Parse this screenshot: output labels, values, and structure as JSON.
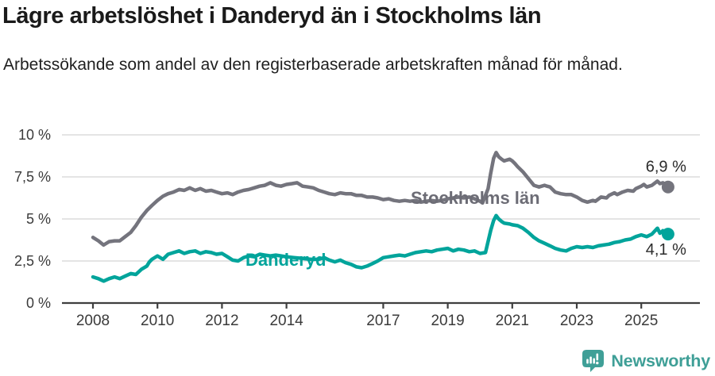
{
  "chart_data": {
    "type": "line",
    "title": "Lägre arbetslöshet i Danderyd än i Stockholms län",
    "subtitle": "Arbetssökande som andel av den registerbaserade arbetskraften månad för månad.",
    "grid": "horizontal",
    "legend_position": "inline-labels",
    "x_axis": {
      "unit": "year",
      "range": [
        2007.0,
        2026.8
      ],
      "ticks": [
        2008,
        2010,
        2012,
        2014,
        2017,
        2019,
        2021,
        2023,
        2025
      ]
    },
    "y_axis": {
      "unit": "%",
      "range": [
        0,
        10
      ],
      "ticks": [
        {
          "value": 0,
          "label": "0 %"
        },
        {
          "value": 2.5,
          "label": "2,5 %"
        },
        {
          "value": 5,
          "label": "5 %"
        },
        {
          "value": 7.5,
          "label": "7,5 %"
        },
        {
          "value": 10,
          "label": "10 %"
        }
      ]
    },
    "colors": {
      "grid": "#dcdcdc",
      "axis": "#3f3f3f",
      "tick_text": "#3a3a3a",
      "value_label_text": "#2b2b2b"
    },
    "series": [
      {
        "name": "Stockholms län",
        "color": "#74747d",
        "label_color": "#6c6c75",
        "end_value_label": "6,9 %",
        "points": [
          [
            2008.0,
            3.9
          ],
          [
            2008.17,
            3.7
          ],
          [
            2008.33,
            3.45
          ],
          [
            2008.5,
            3.65
          ],
          [
            2008.67,
            3.7
          ],
          [
            2008.83,
            3.7
          ],
          [
            2009.0,
            3.95
          ],
          [
            2009.17,
            4.2
          ],
          [
            2009.33,
            4.6
          ],
          [
            2009.5,
            5.1
          ],
          [
            2009.67,
            5.5
          ],
          [
            2009.83,
            5.8
          ],
          [
            2010.0,
            6.1
          ],
          [
            2010.17,
            6.35
          ],
          [
            2010.33,
            6.5
          ],
          [
            2010.5,
            6.6
          ],
          [
            2010.67,
            6.75
          ],
          [
            2010.83,
            6.7
          ],
          [
            2011.0,
            6.85
          ],
          [
            2011.17,
            6.7
          ],
          [
            2011.33,
            6.8
          ],
          [
            2011.5,
            6.65
          ],
          [
            2011.67,
            6.7
          ],
          [
            2011.83,
            6.6
          ],
          [
            2012.0,
            6.5
          ],
          [
            2012.17,
            6.55
          ],
          [
            2012.33,
            6.45
          ],
          [
            2012.5,
            6.6
          ],
          [
            2012.67,
            6.7
          ],
          [
            2012.83,
            6.75
          ],
          [
            2013.0,
            6.85
          ],
          [
            2013.17,
            6.95
          ],
          [
            2013.33,
            7.0
          ],
          [
            2013.5,
            7.15
          ],
          [
            2013.67,
            7.0
          ],
          [
            2013.83,
            6.95
          ],
          [
            2014.0,
            7.05
          ],
          [
            2014.17,
            7.1
          ],
          [
            2014.33,
            7.15
          ],
          [
            2014.5,
            6.95
          ],
          [
            2014.67,
            6.9
          ],
          [
            2014.83,
            6.85
          ],
          [
            2015.0,
            6.7
          ],
          [
            2015.17,
            6.6
          ],
          [
            2015.33,
            6.5
          ],
          [
            2015.5,
            6.45
          ],
          [
            2015.67,
            6.55
          ],
          [
            2015.83,
            6.5
          ],
          [
            2016.0,
            6.5
          ],
          [
            2016.17,
            6.4
          ],
          [
            2016.33,
            6.4
          ],
          [
            2016.5,
            6.3
          ],
          [
            2016.67,
            6.3
          ],
          [
            2016.83,
            6.25
          ],
          [
            2017.0,
            6.15
          ],
          [
            2017.17,
            6.2
          ],
          [
            2017.33,
            6.1
          ],
          [
            2017.5,
            6.05
          ],
          [
            2017.67,
            6.1
          ],
          [
            2017.83,
            6.05
          ],
          [
            2018.0,
            6.1
          ],
          [
            2018.17,
            6.0
          ],
          [
            2018.33,
            6.05
          ],
          [
            2018.5,
            6.1
          ],
          [
            2018.67,
            6.05
          ],
          [
            2018.83,
            6.1
          ],
          [
            2019.0,
            6.2
          ],
          [
            2019.17,
            6.25
          ],
          [
            2019.33,
            6.3
          ],
          [
            2019.5,
            6.25
          ],
          [
            2019.67,
            6.3
          ],
          [
            2019.83,
            6.2
          ],
          [
            2020.0,
            6.05
          ],
          [
            2020.08,
            5.95
          ],
          [
            2020.25,
            6.8
          ],
          [
            2020.33,
            7.7
          ],
          [
            2020.42,
            8.6
          ],
          [
            2020.5,
            8.95
          ],
          [
            2020.58,
            8.7
          ],
          [
            2020.67,
            8.55
          ],
          [
            2020.75,
            8.45
          ],
          [
            2020.83,
            8.5
          ],
          [
            2020.92,
            8.55
          ],
          [
            2021.0,
            8.45
          ],
          [
            2021.08,
            8.3
          ],
          [
            2021.17,
            8.1
          ],
          [
            2021.33,
            7.8
          ],
          [
            2021.5,
            7.4
          ],
          [
            2021.67,
            7.0
          ],
          [
            2021.83,
            6.9
          ],
          [
            2022.0,
            7.0
          ],
          [
            2022.08,
            6.95
          ],
          [
            2022.17,
            6.9
          ],
          [
            2022.33,
            6.6
          ],
          [
            2022.5,
            6.5
          ],
          [
            2022.67,
            6.45
          ],
          [
            2022.83,
            6.45
          ],
          [
            2023.0,
            6.3
          ],
          [
            2023.17,
            6.1
          ],
          [
            2023.33,
            6.0
          ],
          [
            2023.5,
            6.1
          ],
          [
            2023.58,
            6.05
          ],
          [
            2023.75,
            6.3
          ],
          [
            2023.92,
            6.25
          ],
          [
            2024.0,
            6.4
          ],
          [
            2024.17,
            6.55
          ],
          [
            2024.25,
            6.45
          ],
          [
            2024.42,
            6.6
          ],
          [
            2024.58,
            6.7
          ],
          [
            2024.75,
            6.65
          ],
          [
            2024.83,
            6.8
          ],
          [
            2025.0,
            6.95
          ],
          [
            2025.08,
            7.05
          ],
          [
            2025.17,
            6.9
          ],
          [
            2025.33,
            7.0
          ],
          [
            2025.5,
            7.25
          ],
          [
            2025.58,
            7.1
          ],
          [
            2025.67,
            7.15
          ],
          [
            2025.83,
            6.9
          ]
        ]
      },
      {
        "name": "Danderyd",
        "color": "#00a49b",
        "label_color": "#00a49b",
        "end_value_label": "4,1 %",
        "points": [
          [
            2008.0,
            1.55
          ],
          [
            2008.17,
            1.45
          ],
          [
            2008.33,
            1.3
          ],
          [
            2008.5,
            1.45
          ],
          [
            2008.67,
            1.55
          ],
          [
            2008.83,
            1.45
          ],
          [
            2009.0,
            1.6
          ],
          [
            2009.17,
            1.75
          ],
          [
            2009.33,
            1.7
          ],
          [
            2009.5,
            2.0
          ],
          [
            2009.67,
            2.2
          ],
          [
            2009.75,
            2.45
          ],
          [
            2009.83,
            2.6
          ],
          [
            2010.0,
            2.8
          ],
          [
            2010.17,
            2.6
          ],
          [
            2010.33,
            2.9
          ],
          [
            2010.5,
            3.0
          ],
          [
            2010.67,
            3.1
          ],
          [
            2010.83,
            2.95
          ],
          [
            2011.0,
            3.05
          ],
          [
            2011.17,
            3.1
          ],
          [
            2011.33,
            2.95
          ],
          [
            2011.5,
            3.05
          ],
          [
            2011.67,
            3.0
          ],
          [
            2011.83,
            2.9
          ],
          [
            2012.0,
            2.95
          ],
          [
            2012.17,
            2.75
          ],
          [
            2012.33,
            2.55
          ],
          [
            2012.5,
            2.5
          ],
          [
            2012.67,
            2.7
          ],
          [
            2012.83,
            2.8
          ],
          [
            2013.0,
            2.75
          ],
          [
            2013.17,
            2.9
          ],
          [
            2013.33,
            2.85
          ],
          [
            2013.5,
            2.8
          ],
          [
            2013.67,
            2.85
          ],
          [
            2013.83,
            2.8
          ],
          [
            2014.0,
            2.75
          ],
          [
            2014.25,
            2.7
          ],
          [
            2014.5,
            2.65
          ],
          [
            2014.75,
            2.6
          ],
          [
            2015.0,
            2.6
          ],
          [
            2015.17,
            2.7
          ],
          [
            2015.33,
            2.55
          ],
          [
            2015.5,
            2.45
          ],
          [
            2015.67,
            2.55
          ],
          [
            2015.83,
            2.4
          ],
          [
            2016.0,
            2.3
          ],
          [
            2016.17,
            2.15
          ],
          [
            2016.33,
            2.1
          ],
          [
            2016.5,
            2.2
          ],
          [
            2016.67,
            2.35
          ],
          [
            2016.83,
            2.5
          ],
          [
            2017.0,
            2.7
          ],
          [
            2017.17,
            2.75
          ],
          [
            2017.33,
            2.8
          ],
          [
            2017.5,
            2.85
          ],
          [
            2017.67,
            2.8
          ],
          [
            2017.83,
            2.9
          ],
          [
            2018.0,
            3.0
          ],
          [
            2018.17,
            3.05
          ],
          [
            2018.33,
            3.1
          ],
          [
            2018.5,
            3.05
          ],
          [
            2018.67,
            3.15
          ],
          [
            2018.83,
            3.2
          ],
          [
            2019.0,
            3.25
          ],
          [
            2019.17,
            3.1
          ],
          [
            2019.33,
            3.2
          ],
          [
            2019.5,
            3.15
          ],
          [
            2019.67,
            3.05
          ],
          [
            2019.83,
            3.1
          ],
          [
            2020.0,
            2.95
          ],
          [
            2020.17,
            3.0
          ],
          [
            2020.33,
            4.3
          ],
          [
            2020.42,
            4.9
          ],
          [
            2020.5,
            5.2
          ],
          [
            2020.58,
            5.0
          ],
          [
            2020.67,
            4.85
          ],
          [
            2020.75,
            4.75
          ],
          [
            2020.92,
            4.7
          ],
          [
            2021.0,
            4.65
          ],
          [
            2021.17,
            4.6
          ],
          [
            2021.33,
            4.45
          ],
          [
            2021.5,
            4.2
          ],
          [
            2021.67,
            3.9
          ],
          [
            2021.83,
            3.7
          ],
          [
            2022.0,
            3.55
          ],
          [
            2022.17,
            3.4
          ],
          [
            2022.33,
            3.25
          ],
          [
            2022.5,
            3.15
          ],
          [
            2022.67,
            3.1
          ],
          [
            2022.83,
            3.25
          ],
          [
            2023.0,
            3.35
          ],
          [
            2023.17,
            3.3
          ],
          [
            2023.33,
            3.35
          ],
          [
            2023.5,
            3.3
          ],
          [
            2023.67,
            3.4
          ],
          [
            2023.83,
            3.45
          ],
          [
            2024.0,
            3.5
          ],
          [
            2024.17,
            3.6
          ],
          [
            2024.33,
            3.65
          ],
          [
            2024.5,
            3.75
          ],
          [
            2024.67,
            3.8
          ],
          [
            2024.83,
            3.95
          ],
          [
            2025.0,
            4.05
          ],
          [
            2025.17,
            3.95
          ],
          [
            2025.33,
            4.1
          ],
          [
            2025.5,
            4.45
          ],
          [
            2025.58,
            4.15
          ],
          [
            2025.67,
            4.3
          ],
          [
            2025.83,
            4.1
          ]
        ]
      }
    ]
  },
  "footer": {
    "brand": "Newsworthy",
    "brand_color": "#3f9f97",
    "icon": "bar-chart-speech-bubble-icon"
  }
}
